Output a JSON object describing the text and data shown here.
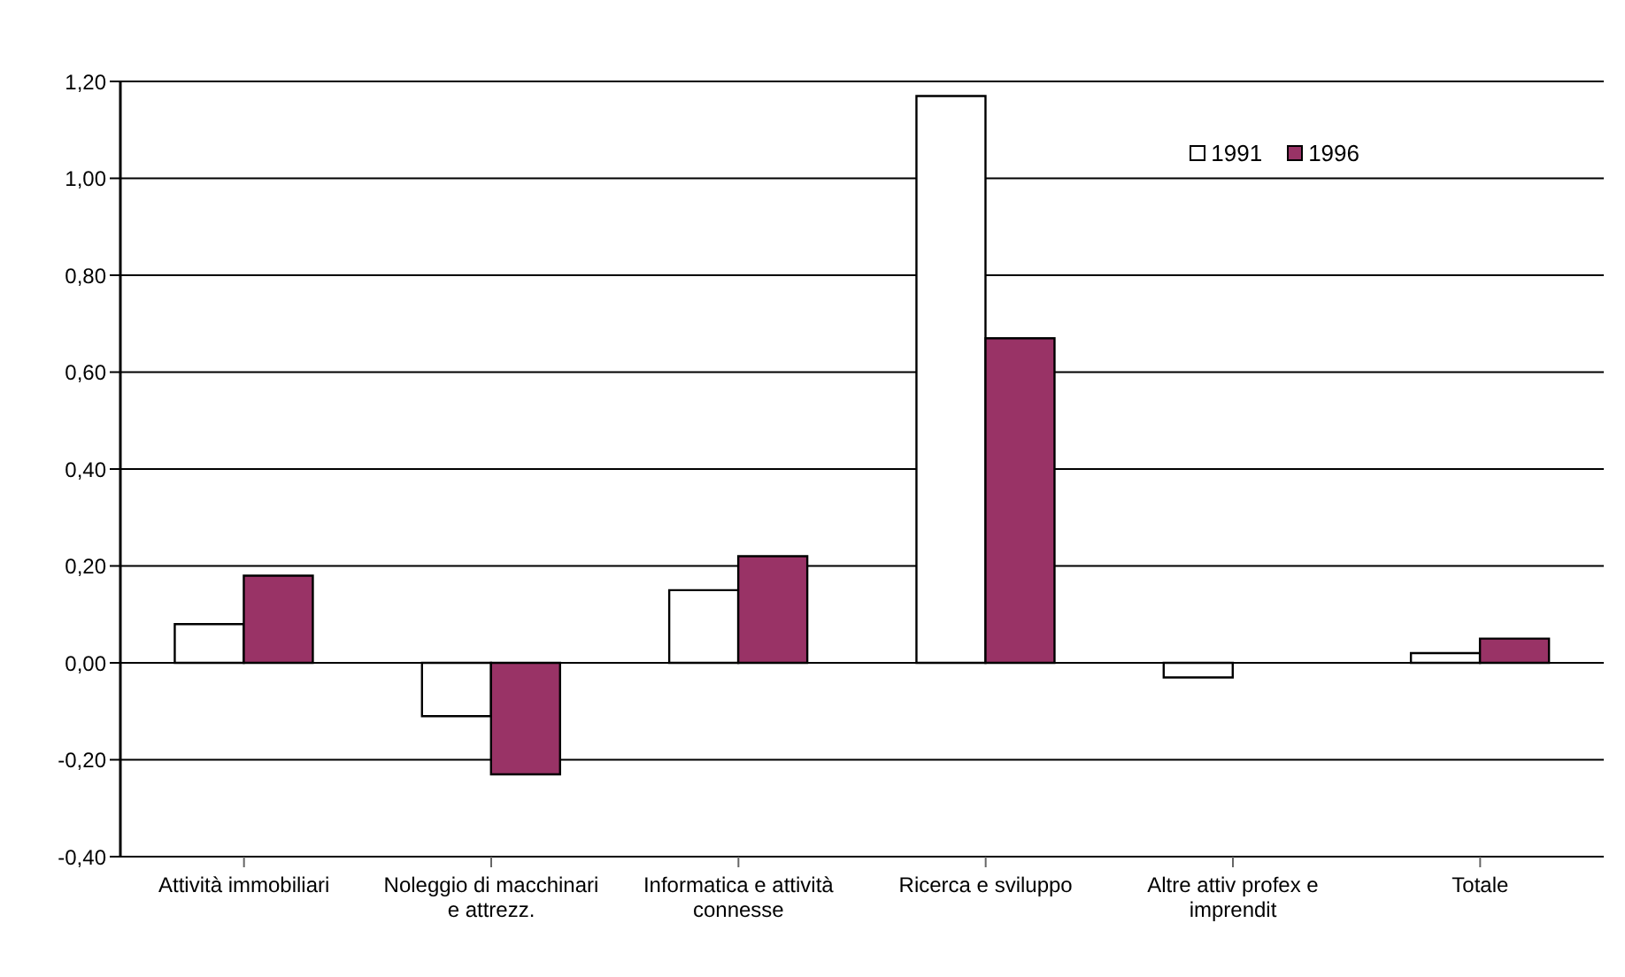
{
  "chart_data": {
    "type": "bar",
    "categories": [
      "Attività immobiliari",
      "Noleggio di macchinari e attrezz.",
      "Informatica e attività connesse",
      "Ricerca e sviluppo",
      "Altre attiv profex e imprendit",
      "Totale"
    ],
    "series": [
      {
        "name": "1991",
        "color": "#ffffff",
        "values": [
          0.08,
          -0.11,
          0.15,
          1.17,
          -0.03,
          0.02
        ]
      },
      {
        "name": "1996",
        "color": "#993366",
        "values": [
          0.18,
          -0.23,
          0.22,
          0.67,
          0.0,
          0.05
        ]
      }
    ],
    "ylim": [
      -0.4,
      1.2
    ],
    "yticks": [
      {
        "value": -0.4,
        "label": "-0,40"
      },
      {
        "value": -0.2,
        "label": "-0,20"
      },
      {
        "value": 0,
        "label": "0,00"
      },
      {
        "value": 0.2,
        "label": "0,20"
      },
      {
        "value": 0.4,
        "label": "0,40"
      },
      {
        "value": 0.6,
        "label": "0,60"
      },
      {
        "value": 0.8,
        "label": "0,80"
      },
      {
        "value": 1.0,
        "label": "1,00"
      },
      {
        "value": 1.2,
        "label": "1,20"
      }
    ],
    "grid": "y",
    "legend": "top right"
  }
}
